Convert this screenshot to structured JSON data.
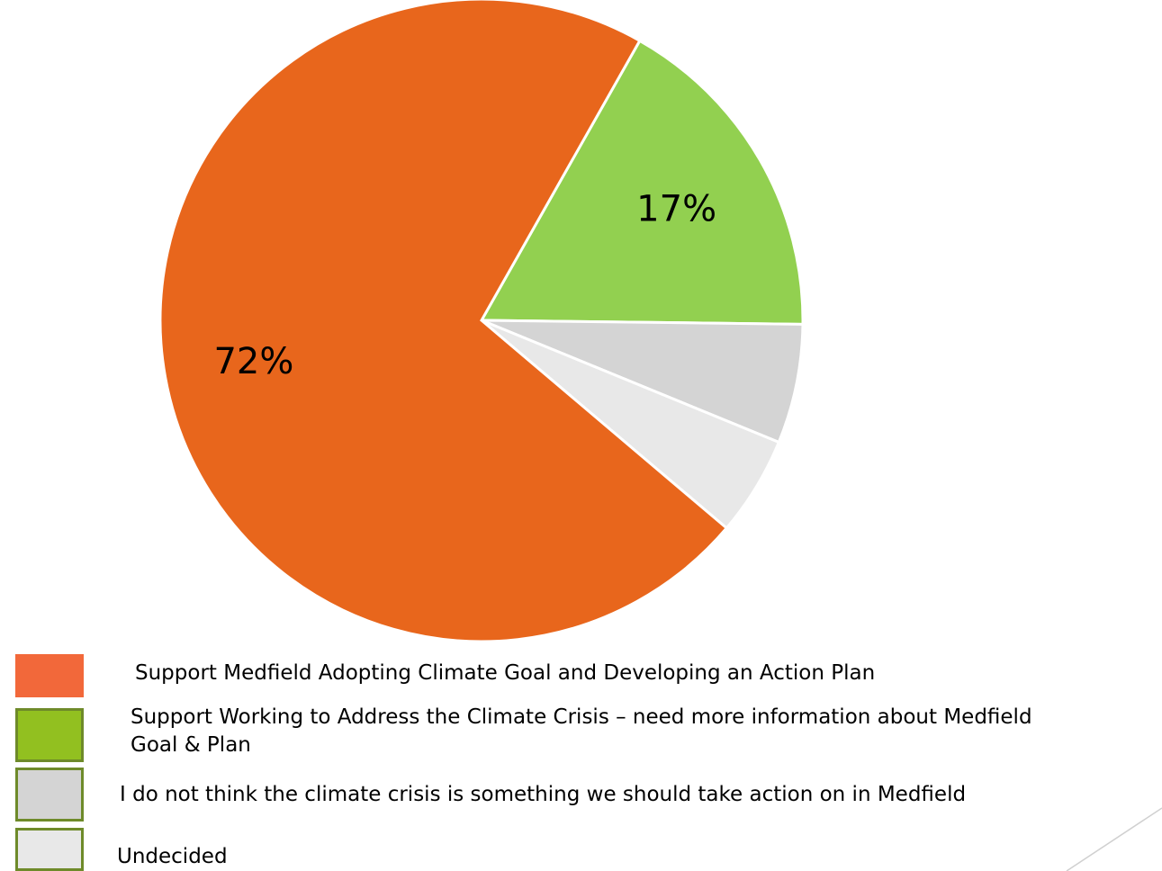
{
  "chart_data": {
    "type": "pie",
    "title": "",
    "slices": [
      {
        "label": "Support Medfield Adopting Climate Goal and Developing an Action Plan",
        "value": 72,
        "data_label": "72%",
        "color": "#E8661C",
        "swatch_color": "#F2683A",
        "swatch_border": "#F2683A"
      },
      {
        "label": "Support Working to Address the Climate Crisis – need more information about Medfield Goal & Plan",
        "value": 17,
        "data_label": "17%",
        "color": "#92D050",
        "swatch_color": "#92C020",
        "swatch_border": "#6E8A2A"
      },
      {
        "label": "I do not think the climate crisis is something we should take action on in Medfield",
        "value": 6,
        "data_label": "",
        "color": "#D4D4D4",
        "swatch_color": "#D4D4D4",
        "swatch_border": "#6E8A2A"
      },
      {
        "label": "Undecided",
        "value": 5,
        "data_label": "",
        "color": "#E8E8E8",
        "swatch_color": "#E8E8E8",
        "swatch_border": "#6E8A2A"
      }
    ],
    "legend_position": "bottom-left"
  },
  "legend": {
    "items": [
      {
        "line1": "Support Medfield Adopting Climate Goal and Developing an Action Plan",
        "line2": ""
      },
      {
        "line1": "Support Working to Address the Climate Crisis – need more information about Medfield",
        "line2": "Goal & Plan"
      },
      {
        "line1": "I do not think the climate crisis is something we should take action on in Medfield",
        "line2": ""
      },
      {
        "line1": "Undecided",
        "line2": ""
      }
    ]
  }
}
